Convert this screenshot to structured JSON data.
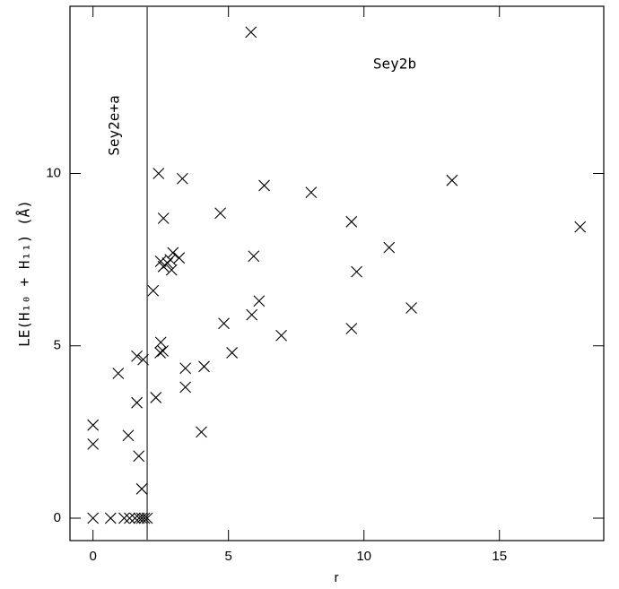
{
  "chart_data": {
    "type": "scatter",
    "x_label": "r",
    "y_label": "LE(H₁₀ + H₁₁) (Å)",
    "annotations": [
      "Sey2b",
      "Sey2e+a"
    ],
    "vline": 2,
    "color": "#000000",
    "xlim": [
      -0.85,
      18.85
    ],
    "ylim": [
      -0.65,
      14.85
    ],
    "xticks": [
      0,
      5,
      10,
      15
    ],
    "yticks": [
      0,
      5,
      10
    ],
    "x": [
      0,
      0,
      0,
      0.65,
      1.15,
      1.35,
      1.55,
      1.7,
      1.8,
      1.9,
      2.0,
      0.93,
      1.3,
      1.62,
      1.62,
      1.69,
      1.8,
      1.85,
      2.22,
      2.32,
      2.42,
      2.48,
      2.5,
      2.58,
      2.5,
      2.6,
      2.6,
      2.75,
      2.85,
      2.95,
      2.9,
      3.18,
      3.3,
      3.41,
      3.41,
      4.0,
      4.1,
      4.7,
      4.83,
      5.13,
      5.83,
      5.86,
      5.93,
      6.13,
      6.32,
      6.95,
      8.05,
      9.54,
      9.54,
      9.73,
      10.93,
      11.75,
      13.25,
      17.98
    ],
    "y": [
      0,
      2.7,
      2.15,
      0,
      0,
      0,
      0,
      0,
      0,
      0,
      0,
      4.2,
      2.4,
      3.35,
      4.7,
      1.8,
      0.85,
      4.6,
      6.6,
      3.5,
      10.0,
      4.8,
      5.1,
      4.85,
      7.45,
      7.3,
      8.7,
      7.4,
      7.5,
      7.7,
      7.2,
      7.55,
      9.85,
      4.35,
      3.8,
      2.5,
      4.4,
      8.85,
      5.65,
      4.8,
      14.1,
      5.9,
      7.6,
      6.3,
      9.65,
      5.3,
      9.45,
      8.6,
      5.5,
      7.15,
      7.85,
      6.1,
      9.8,
      8.45
    ]
  }
}
